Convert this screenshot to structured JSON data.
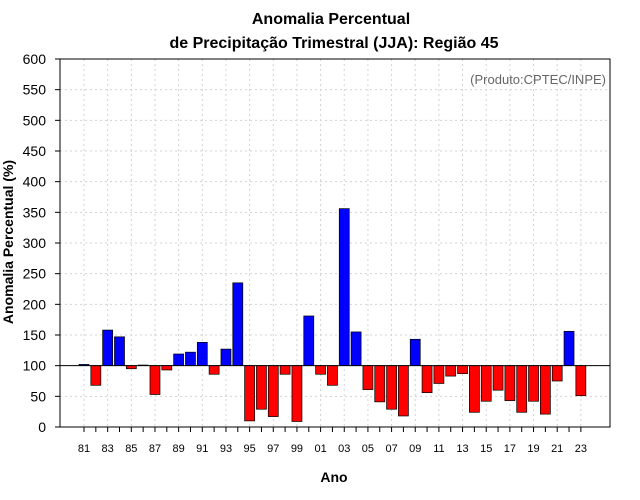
{
  "chart_data": {
    "type": "bar",
    "title_line1": "Anomalia Percentual",
    "title_line2": "de Precipitação Trimestral (JJA): Região 45",
    "xlabel": "Ano",
    "ylabel": "Anomalia Percentual (%)",
    "credit": "(Produto:CPTEC/INPE)",
    "ylim": [
      0,
      600
    ],
    "yticks": [
      0,
      50,
      100,
      150,
      200,
      250,
      300,
      350,
      400,
      450,
      500,
      550,
      600
    ],
    "baseline": 100,
    "grid": true,
    "xtick_labels": [
      "81",
      "83",
      "85",
      "87",
      "89",
      "91",
      "93",
      "95",
      "97",
      "99",
      "01",
      "03",
      "05",
      "07",
      "09",
      "11",
      "13",
      "15",
      "17",
      "19",
      "21",
      "23"
    ],
    "categories": [
      "81",
      "82",
      "83",
      "84",
      "85",
      "86",
      "87",
      "88",
      "89",
      "90",
      "91",
      "92",
      "93",
      "94",
      "95",
      "96",
      "97",
      "98",
      "99",
      "00",
      "01",
      "02",
      "03",
      "04",
      "05",
      "06",
      "07",
      "08",
      "09",
      "10",
      "11",
      "12",
      "13",
      "14",
      "15",
      "16",
      "17",
      "18",
      "19",
      "20",
      "21",
      "22",
      "23"
    ],
    "values": [
      102,
      68,
      158,
      147,
      95,
      101,
      53,
      93,
      119,
      122,
      138,
      86,
      127,
      235,
      10,
      29,
      17,
      86,
      9,
      181,
      86,
      68,
      356,
      155,
      61,
      41,
      29,
      18,
      143,
      56,
      71,
      83,
      87,
      24,
      42,
      60,
      43,
      24,
      42,
      21,
      75,
      156,
      51
    ],
    "colors": {
      "above": "#0000ff",
      "below": "#ff0000",
      "edge": "#000000"
    }
  }
}
